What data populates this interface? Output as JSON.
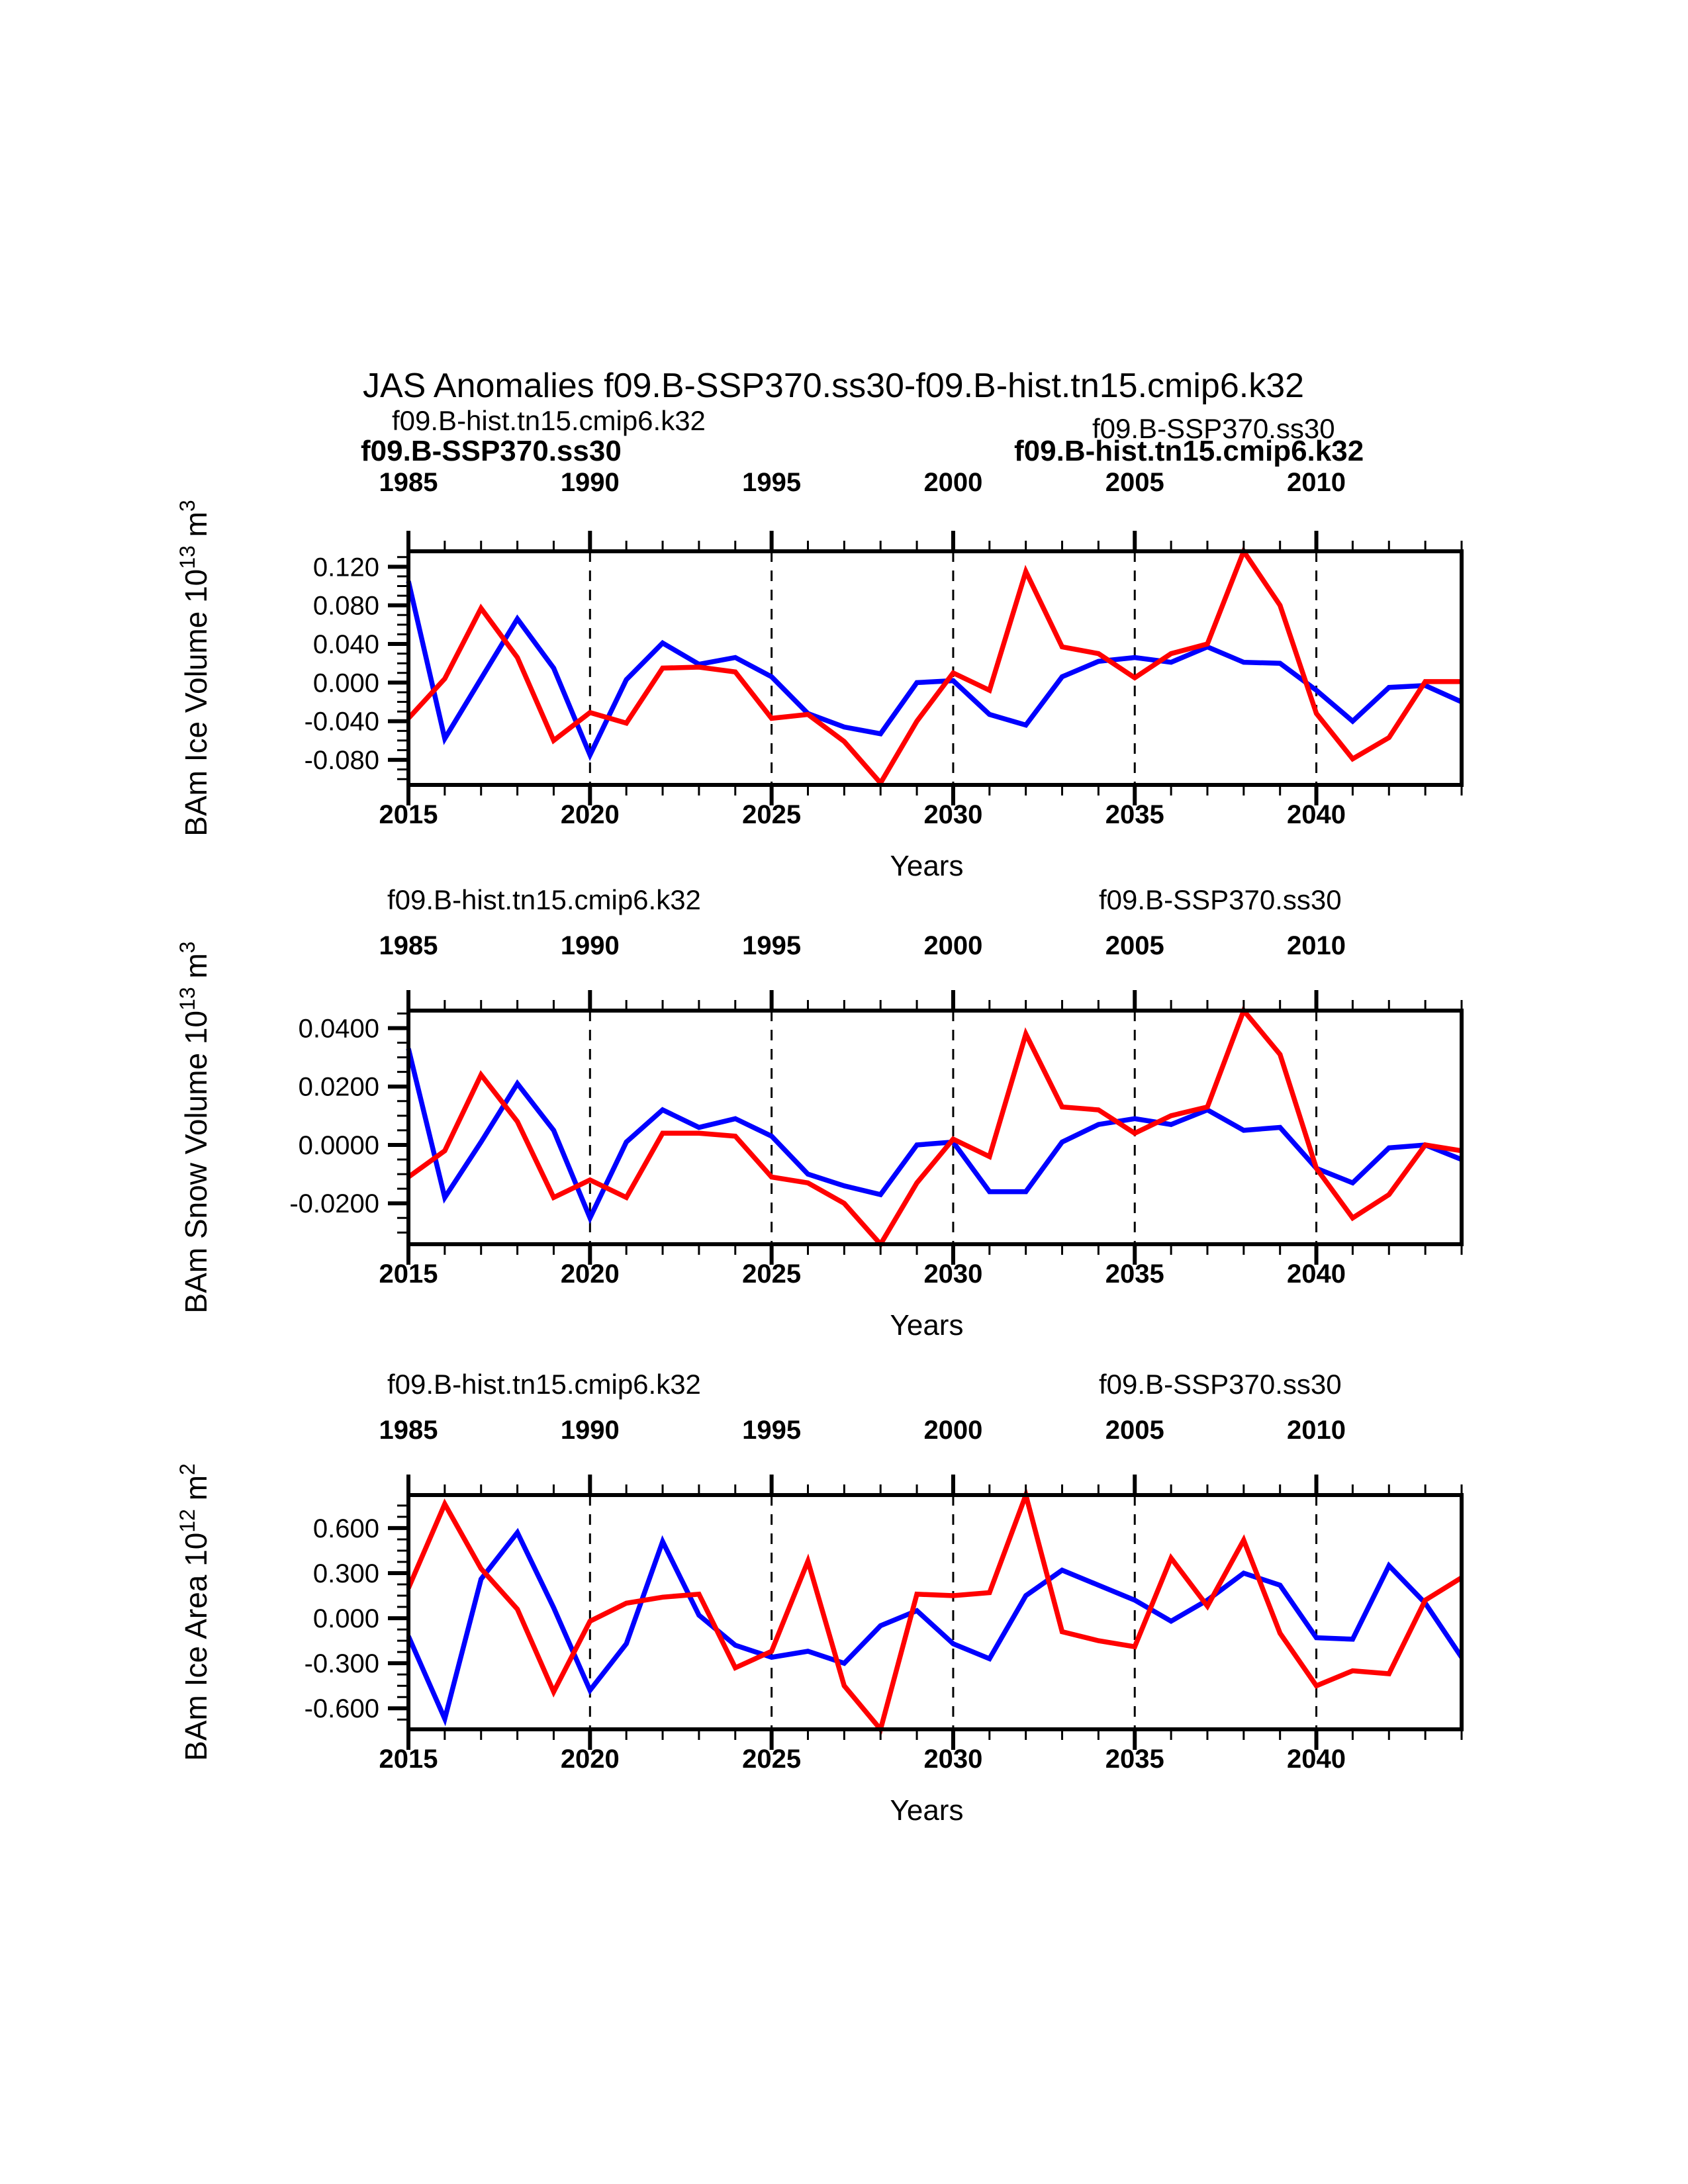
{
  "title": "JAS Anomalies f09.B-SSP370.ss30-f09.B-hist.tn15.cmip6.k32",
  "colors": {
    "hist": "#ff0000",
    "ssp": "#0000ff",
    "axis": "#000000",
    "background": "#ffffff"
  },
  "series_names": {
    "hist": "f09.B-hist.tn15.cmip6.k32",
    "ssp": "f09.B-SSP370.ss30"
  },
  "xlabel": "Years",
  "axes": {
    "x_start_year": 2015,
    "x_end_year": 2044,
    "major_tick_years": [
      2015,
      2020,
      2025,
      2030,
      2035,
      2040
    ],
    "bottom_tick_labels": [
      "2015",
      "2020",
      "2025",
      "2030",
      "2035",
      "2040"
    ],
    "top_tick_labels": [
      "1985",
      "1990",
      "1995",
      "2000",
      "2005",
      "2010"
    ],
    "dashed_gridline_years": [
      2020,
      2025,
      2030,
      2035,
      2040
    ],
    "years_ssp": [
      2015,
      2016,
      2017,
      2018,
      2019,
      2020,
      2021,
      2022,
      2023,
      2024,
      2025,
      2026,
      2027,
      2028,
      2029,
      2030,
      2031,
      2032,
      2033,
      2034,
      2035,
      2036,
      2037,
      2038,
      2039,
      2040,
      2041,
      2042,
      2043,
      2044
    ],
    "years_hist": [
      1985,
      1986,
      1987,
      1988,
      1989,
      1990,
      1991,
      1992,
      1993,
      1994,
      1995,
      1996,
      1997,
      1998,
      1999,
      2000,
      2001,
      2002,
      2003,
      2004,
      2005,
      2006,
      2007,
      2008,
      2009,
      2010,
      2011,
      2012,
      2013,
      2014
    ]
  },
  "chart_data": [
    {
      "type": "line",
      "panel_id": "ice-volume-panel",
      "ylabel": "BAm Ice Volume 10¹³ m³",
      "ylabel_parts": [
        [
          "t",
          "BAm Ice Volume 10"
        ],
        [
          "s",
          "13"
        ],
        [
          "t",
          " m"
        ],
        [
          "s",
          "3"
        ]
      ],
      "ylim": [
        -0.106,
        0.136
      ],
      "yminor_step": 0.01,
      "yticks": [
        {
          "v": 0.12,
          "label": "0.120"
        },
        {
          "v": 0.08,
          "label": "0.080"
        },
        {
          "v": 0.04,
          "label": "0.040"
        },
        {
          "v": 0.0,
          "label": "0.000"
        },
        {
          "v": -0.04,
          "label": "-0.040"
        },
        {
          "v": -0.08,
          "label": "-0.080"
        }
      ],
      "series": [
        {
          "name": "f09.B-SSP370.ss30",
          "color_key": "ssp",
          "values": [
            0.105,
            -0.058,
            0.004,
            0.066,
            0.015,
            -0.075,
            0.003,
            0.041,
            0.019,
            0.026,
            0.006,
            -0.032,
            -0.046,
            -0.053,
            0.0,
            0.002,
            -0.033,
            -0.044,
            0.006,
            0.022,
            0.026,
            0.021,
            0.037,
            0.021,
            0.02,
            -0.008,
            -0.04,
            -0.005,
            -0.003,
            -0.02
          ]
        },
        {
          "name": "f09.B-hist.tn15.cmip6.k32",
          "color_key": "hist",
          "values": [
            -0.037,
            0.004,
            0.077,
            0.026,
            -0.06,
            -0.031,
            -0.042,
            0.015,
            0.016,
            0.011,
            -0.037,
            -0.033,
            -0.061,
            -0.104,
            -0.04,
            0.01,
            -0.008,
            0.115,
            0.037,
            0.03,
            0.005,
            0.03,
            0.04,
            0.136,
            0.08,
            -0.032,
            -0.079,
            -0.057,
            0.001,
            0.001
          ]
        }
      ],
      "legends": [
        {
          "label": "f09.B-hist.tn15.cmip6.k32",
          "color_key": "hist",
          "bold": false,
          "slot": "left"
        },
        {
          "label": "f09.B-SSP370.ss30",
          "color_key": "ssp",
          "bold": true,
          "slot": "left-lower"
        },
        {
          "label": "f09.B-SSP370.ss30",
          "color_key": "ssp",
          "bold": false,
          "slot": "right"
        },
        {
          "label": "f09.B-hist.tn15.cmip6.k32",
          "color_key": "hist",
          "bold": true,
          "slot": "right-lower"
        }
      ]
    },
    {
      "type": "line",
      "panel_id": "snow-volume-panel",
      "ylabel": "BAm Snow Volume 10¹³ m³",
      "ylabel_parts": [
        [
          "t",
          "BAm Snow Volume 10"
        ],
        [
          "s",
          "13"
        ],
        [
          "t",
          " m"
        ],
        [
          "s",
          "3"
        ]
      ],
      "ylim": [
        -0.034,
        0.046
      ],
      "yminor_step": 0.005,
      "yticks": [
        {
          "v": 0.04,
          "label": "0.0400"
        },
        {
          "v": 0.02,
          "label": "0.0200"
        },
        {
          "v": 0.0,
          "label": "0.0000"
        },
        {
          "v": -0.02,
          "label": "-0.0200"
        }
      ],
      "series": [
        {
          "name": "f09.B-SSP370.ss30",
          "color_key": "ssp",
          "values": [
            0.033,
            -0.018,
            0.001,
            0.021,
            0.005,
            -0.025,
            0.001,
            0.012,
            0.006,
            0.009,
            0.003,
            -0.01,
            -0.014,
            -0.017,
            0.0,
            0.001,
            -0.016,
            -0.016,
            0.001,
            0.007,
            0.009,
            0.007,
            0.012,
            0.005,
            0.006,
            -0.008,
            -0.013,
            -0.001,
            0.0,
            -0.005
          ]
        },
        {
          "name": "f09.B-hist.tn15.cmip6.k32",
          "color_key": "hist",
          "values": [
            -0.011,
            -0.002,
            0.024,
            0.008,
            -0.018,
            -0.012,
            -0.018,
            0.004,
            0.004,
            0.003,
            -0.011,
            -0.013,
            -0.02,
            -0.034,
            -0.013,
            0.002,
            -0.004,
            0.038,
            0.013,
            0.012,
            0.004,
            0.01,
            0.013,
            0.046,
            0.031,
            -0.008,
            -0.025,
            -0.017,
            0.0,
            -0.002
          ]
        }
      ],
      "legends": [
        {
          "label": "f09.B-hist.tn15.cmip6.k32",
          "color_key": "hist",
          "bold": false,
          "slot": "left"
        },
        {
          "label": "f09.B-SSP370.ss30",
          "color_key": "ssp",
          "bold": false,
          "slot": "right"
        }
      ]
    },
    {
      "type": "line",
      "panel_id": "ice-area-panel",
      "ylabel": "BAm Ice Area 10¹² m²",
      "ylabel_parts": [
        [
          "t",
          "BAm Ice Area 10"
        ],
        [
          "s",
          "12"
        ],
        [
          "t",
          " m"
        ],
        [
          "s",
          "2"
        ]
      ],
      "ylim": [
        -0.74,
        0.82
      ],
      "yminor_step": 0.075,
      "yticks": [
        {
          "v": 0.6,
          "label": "0.600"
        },
        {
          "v": 0.3,
          "label": "0.300"
        },
        {
          "v": 0.0,
          "label": "0.000"
        },
        {
          "v": -0.3,
          "label": "-0.300"
        },
        {
          "v": -0.6,
          "label": "-0.600"
        }
      ],
      "series": [
        {
          "name": "f09.B-SSP370.ss30",
          "color_key": "ssp",
          "values": [
            -0.12,
            -0.67,
            0.26,
            0.57,
            0.07,
            -0.48,
            -0.17,
            0.51,
            0.02,
            -0.18,
            -0.26,
            -0.22,
            -0.3,
            -0.05,
            0.05,
            -0.17,
            -0.27,
            0.15,
            0.32,
            0.22,
            0.12,
            -0.02,
            0.12,
            0.3,
            0.22,
            -0.13,
            -0.14,
            0.35,
            0.1,
            -0.26
          ]
        },
        {
          "name": "f09.B-hist.tn15.cmip6.k32",
          "color_key": "hist",
          "values": [
            0.2,
            0.76,
            0.33,
            0.06,
            -0.49,
            -0.02,
            0.1,
            0.14,
            0.16,
            -0.33,
            -0.22,
            0.38,
            -0.45,
            -0.74,
            0.16,
            0.15,
            0.17,
            0.82,
            -0.09,
            -0.15,
            -0.19,
            0.4,
            0.08,
            0.52,
            -0.1,
            -0.45,
            -0.35,
            -0.37,
            0.12,
            0.27
          ]
        }
      ],
      "legends": [
        {
          "label": "f09.B-hist.tn15.cmip6.k32",
          "color_key": "hist",
          "bold": false,
          "slot": "left"
        },
        {
          "label": "f09.B-SSP370.ss30",
          "color_key": "ssp",
          "bold": false,
          "slot": "right"
        }
      ]
    }
  ]
}
